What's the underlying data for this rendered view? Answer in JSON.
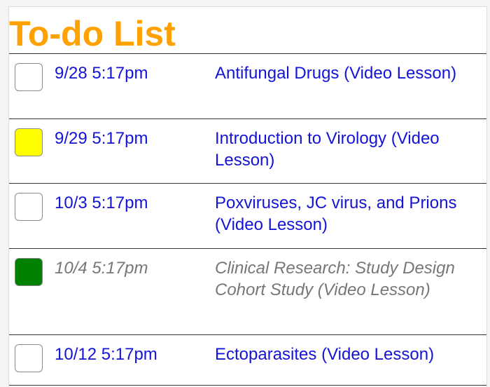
{
  "title": "To-do List",
  "items": [
    {
      "date": "9/28 5:17pm",
      "task": "Antifungal Drugs (Video Lesson)",
      "box_color": "#ffffff",
      "done": false
    },
    {
      "date": "9/29 5:17pm",
      "task": "Introduction to Virology (Video Lesson)",
      "box_color": "#ffff00",
      "done": false
    },
    {
      "date": "10/3 5:17pm",
      "task": "Poxviruses, JC virus, and Prions (Video Lesson)",
      "box_color": "#ffffff",
      "done": false
    },
    {
      "date": "10/4 5:17pm",
      "task": "Clinical Research: Study Design Cohort Study (Video Lesson)",
      "box_color": "#008000",
      "done": true
    },
    {
      "date": "10/12 5:17pm",
      "task": "Ectoparasites (Video Lesson)",
      "box_color": "#ffffff",
      "done": false
    }
  ],
  "colors": {
    "title": "#ffa100",
    "link": "#1414d6",
    "done_text": "#777777"
  }
}
